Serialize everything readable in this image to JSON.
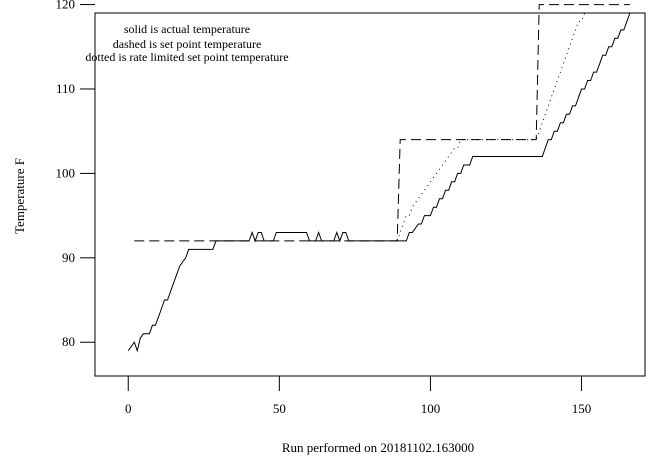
{
  "chart_data": {
    "type": "line",
    "title": "",
    "xlabel": "Run performed on 20181102.163000",
    "ylabel": "Temperature F",
    "xlim": [
      -11,
      171
    ],
    "ylim": [
      76,
      119
    ],
    "xticks": [
      0,
      50,
      100,
      150
    ],
    "yticks": [
      80,
      90,
      100,
      110,
      120
    ],
    "grid": false,
    "legend_position": "top-left",
    "legend_lines": [
      "solid is actual temperature",
      "dashed is set point temperature",
      "dotted is rate limited set point temperature"
    ],
    "series": [
      {
        "style": "solid",
        "x": [
          0,
          1,
          2,
          3,
          4,
          5,
          6,
          7,
          8,
          9,
          10,
          11,
          12,
          13,
          14,
          15,
          16,
          17,
          18,
          19,
          20,
          21,
          22,
          28,
          29,
          30,
          40,
          41,
          42,
          43,
          44,
          45,
          46,
          48,
          49,
          50,
          58,
          59,
          60,
          62,
          63,
          64,
          65,
          68,
          69,
          70,
          71,
          72,
          73,
          89,
          92,
          93,
          94,
          96,
          97,
          98,
          100,
          101,
          102,
          103,
          104,
          105,
          106,
          107,
          108,
          109,
          110,
          111,
          112,
          113,
          114,
          115,
          137,
          138,
          139,
          140,
          141,
          142,
          143,
          144,
          145,
          146,
          147,
          148,
          149,
          150,
          151,
          152,
          153,
          154,
          155,
          156,
          157,
          158,
          159,
          160,
          161,
          162,
          163,
          164,
          165,
          166
        ],
        "y": [
          79,
          79.5,
          80,
          79,
          80.5,
          81,
          81,
          81,
          82,
          82,
          83,
          84,
          85,
          85,
          86,
          87,
          88,
          89,
          89.5,
          90,
          91,
          91,
          91,
          91,
          92,
          92,
          92,
          93,
          92,
          93,
          93,
          92,
          92,
          92,
          93,
          93,
          93,
          93,
          92,
          92,
          93,
          92,
          92,
          92,
          93,
          92,
          93,
          93,
          92,
          92,
          92,
          93,
          93,
          94,
          94,
          95,
          95,
          96,
          96,
          97,
          97,
          98,
          98,
          99,
          99,
          100,
          100,
          101,
          101,
          101,
          102,
          102,
          102,
          103,
          104,
          104,
          105,
          105,
          106,
          106,
          107,
          107,
          108,
          108,
          109,
          110,
          110,
          111,
          111,
          112,
          112,
          113,
          114,
          114,
          115,
          115,
          116,
          116,
          117,
          117,
          118,
          119
        ]
      },
      {
        "style": "dashed",
        "x": [
          2,
          89,
          89.5,
          90,
          135,
          135.5,
          136,
          166
        ],
        "y": [
          92,
          92,
          98,
          104,
          104,
          112,
          120,
          120
        ]
      },
      {
        "style": "dotted",
        "x": [
          89,
          90,
          91,
          92,
          93,
          94,
          95,
          96,
          97,
          98,
          99,
          100,
          101,
          102,
          103,
          104,
          105,
          106,
          107,
          108,
          109,
          110,
          135,
          136,
          137,
          138,
          139,
          140,
          141,
          142,
          143,
          144,
          145,
          146,
          147,
          148,
          149,
          150,
          151,
          152,
          153,
          154,
          155,
          156,
          157,
          158,
          159,
          160,
          161,
          162,
          163,
          164,
          165,
          166
        ],
        "y": [
          92,
          93,
          94,
          95,
          95,
          96,
          96.5,
          97,
          97.5,
          98,
          98.5,
          99,
          99.5,
          100,
          100.5,
          101,
          101.5,
          102,
          102.5,
          103,
          103,
          104,
          104,
          105,
          106,
          107,
          108,
          109,
          110,
          111,
          112,
          113,
          114,
          115,
          116,
          117,
          118,
          118,
          119,
          119,
          119,
          119,
          119,
          119,
          119,
          119,
          119,
          119,
          119,
          119,
          119,
          119,
          119,
          119
        ]
      }
    ]
  }
}
